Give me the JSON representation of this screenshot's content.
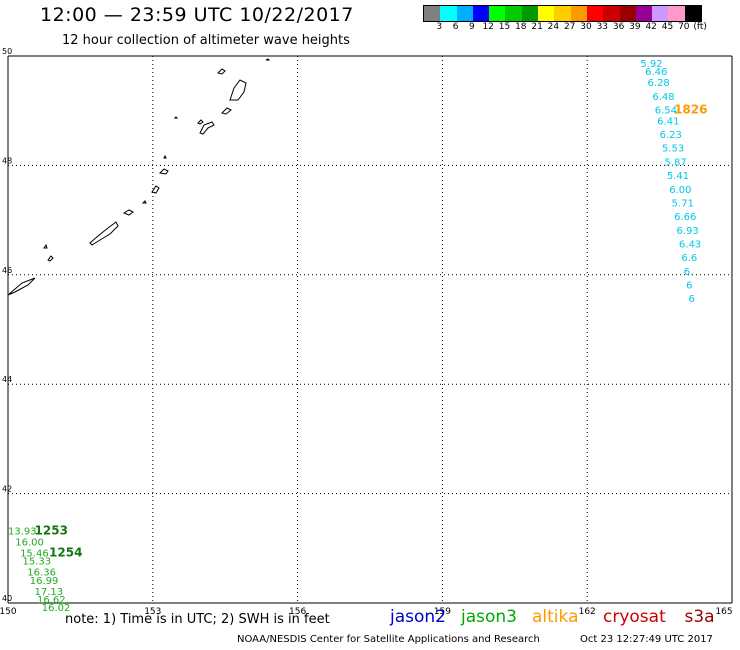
{
  "header": {
    "title": "12:00 — 23:59 UTC 10/22/2017",
    "subtitle": "12 hour collection of altimeter wave heights"
  },
  "legend": {
    "colors": [
      "#808080",
      "#00ffff",
      "#00b0ff",
      "#0000ff",
      "#00ff00",
      "#00cc00",
      "#009900",
      "#ffff00",
      "#ffcc00",
      "#ff9900",
      "#ff0000",
      "#cc0000",
      "#990000",
      "#990099",
      "#cc99ff",
      "#ff99cc",
      "#000000"
    ],
    "labels": [
      "3",
      "6",
      "9",
      "12",
      "15",
      "18",
      "21",
      "24",
      "27",
      "30",
      "33",
      "36",
      "39",
      "42",
      "45",
      "70",
      "(ft)"
    ]
  },
  "map_data": {
    "lon_range": [
      150,
      165
    ],
    "lat_range": [
      40,
      50
    ],
    "lon_ticks": [
      "150",
      "153",
      "156",
      "159",
      "162",
      "165"
    ],
    "lat_ticks": [
      "40",
      "42",
      "44",
      "46",
      "48",
      "50"
    ],
    "grid": "dotted",
    "tracks": [
      {
        "color": "#00c8e6",
        "points": [
          {
            "lon": 163.1,
            "lat": 49.8,
            "label": "5.92"
          },
          {
            "lon": 163.2,
            "lat": 49.65,
            "label": "6.46"
          },
          {
            "lon": 163.25,
            "lat": 49.45,
            "label": "6.28"
          },
          {
            "lon": 163.35,
            "lat": 49.2,
            "label": "6.48"
          },
          {
            "lon": 163.4,
            "lat": 48.95,
            "label": "6.54"
          },
          {
            "lon": 163.45,
            "lat": 48.75,
            "label": "6.41"
          },
          {
            "lon": 163.5,
            "lat": 48.5,
            "label": "6.23"
          },
          {
            "lon": 163.55,
            "lat": 48.25,
            "label": "5.53"
          },
          {
            "lon": 163.6,
            "lat": 48.0,
            "label": "5.87"
          },
          {
            "lon": 163.65,
            "lat": 47.75,
            "label": "5.41"
          },
          {
            "lon": 163.7,
            "lat": 47.5,
            "label": "6.00"
          },
          {
            "lon": 163.75,
            "lat": 47.25,
            "label": "5.71"
          },
          {
            "lon": 163.8,
            "lat": 47.0,
            "label": "6.66"
          },
          {
            "lon": 163.85,
            "lat": 46.75,
            "label": "6.93"
          },
          {
            "lon": 163.9,
            "lat": 46.5,
            "label": "6.43"
          },
          {
            "lon": 163.95,
            "lat": 46.25,
            "label": "6.6"
          },
          {
            "lon": 164.0,
            "lat": 46.0,
            "label": "6."
          },
          {
            "lon": 164.05,
            "lat": 45.75,
            "label": "6"
          },
          {
            "lon": 164.1,
            "lat": 45.5,
            "label": "6"
          }
        ],
        "time_label": {
          "lon": 163.8,
          "lat": 48.95,
          "text": "1826",
          "color": "#ff9900"
        }
      },
      {
        "color": "#22aa22",
        "points": [
          {
            "lon": 150.0,
            "lat": 41.25,
            "label": "13.93"
          },
          {
            "lon": 150.15,
            "lat": 41.05,
            "label": "16.00"
          },
          {
            "lon": 150.25,
            "lat": 40.85,
            "label": "15.46"
          },
          {
            "lon": 150.3,
            "lat": 40.7,
            "label": "15.33"
          },
          {
            "lon": 150.4,
            "lat": 40.5,
            "label": "16.36"
          },
          {
            "lon": 150.45,
            "lat": 40.35,
            "label": "16.99"
          },
          {
            "lon": 150.55,
            "lat": 40.15,
            "label": "17.13"
          },
          {
            "lon": 150.6,
            "lat": 40.0,
            "label": "16.62"
          },
          {
            "lon": 150.7,
            "lat": 39.85,
            "label": "16.02"
          }
        ],
        "time_labels": [
          {
            "lon": 150.55,
            "lat": 41.25,
            "text": "1253",
            "color": "#117711"
          },
          {
            "lon": 150.85,
            "lat": 40.85,
            "text": "1254",
            "color": "#117711"
          }
        ]
      }
    ]
  },
  "footer": {
    "note": "note: 1) Time is in UTC; 2) SWH is in feet",
    "satellites": [
      {
        "name": "jason2",
        "color": "#0000cc"
      },
      {
        "name": "jason3",
        "color": "#00aa00"
      },
      {
        "name": "altika",
        "color": "#ff9900"
      },
      {
        "name": "cryosat",
        "color": "#cc0000"
      },
      {
        "name": "s3a",
        "color": "#990000"
      }
    ],
    "credit": "NOAA/NESDIS Center for Satellite Applications and Research",
    "timestamp": "Oct 23 12:27:49 UTC 2017"
  }
}
